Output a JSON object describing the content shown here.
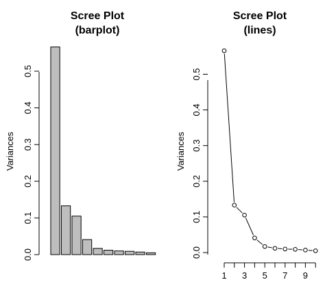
{
  "chart_data": [
    {
      "type": "bar",
      "title": "Scree Plot",
      "subtitle": "(barplot)",
      "ylabel": "Variances",
      "xlabel": "",
      "ylim": [
        0,
        0.57
      ],
      "yticks": [
        "0.0",
        "0.1",
        "0.2",
        "0.3",
        "0.4",
        "0.5"
      ],
      "values": [
        0.566,
        0.133,
        0.105,
        0.041,
        0.017,
        0.012,
        0.01,
        0.009,
        0.007,
        0.005
      ],
      "colors": {
        "bar_fill": "#bebebe",
        "stroke": "#000000"
      },
      "grid": false
    },
    {
      "type": "line",
      "title": "Scree Plot",
      "subtitle": "(lines)",
      "ylabel": "Variances",
      "xlabel": "",
      "ylim": [
        0,
        0.57
      ],
      "yticks": [
        "0.0",
        "0.1",
        "0.2",
        "0.3",
        "0.4",
        "0.5"
      ],
      "xticks": [
        "1",
        "3",
        "5",
        "7",
        "9"
      ],
      "x": [
        1,
        2,
        3,
        4,
        5,
        6,
        7,
        8,
        9,
        10
      ],
      "values": [
        0.566,
        0.133,
        0.105,
        0.041,
        0.017,
        0.012,
        0.01,
        0.009,
        0.007,
        0.005
      ],
      "marker": "open-circle",
      "colors": {
        "line": "#000000",
        "marker": "#000000"
      },
      "grid": false
    }
  ]
}
